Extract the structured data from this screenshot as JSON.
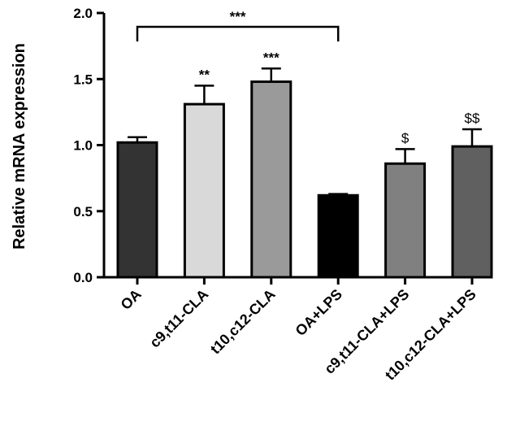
{
  "chart_data": {
    "type": "bar",
    "title": "",
    "xlabel": "",
    "ylabel": "Relative mRNA expression",
    "ylim": [
      0,
      2.0
    ],
    "yticks": [
      "0.0",
      "0.5",
      "1.0",
      "1.5",
      "2.0"
    ],
    "grid": false,
    "categories": [
      "OA",
      "c9,t11-CLA",
      "t10,c12-CLA",
      "OA+LPS",
      "c9,t11-CLA+LPS",
      "t10,c12-CLA+LPS"
    ],
    "values": [
      1.02,
      1.31,
      1.48,
      0.62,
      0.86,
      0.99
    ],
    "errors": [
      0.04,
      0.14,
      0.1,
      0.01,
      0.11,
      0.13
    ],
    "colors": [
      "#333333",
      "#d9d9d9",
      "#9a9a9a",
      "#000000",
      "#808080",
      "#606060"
    ],
    "significance": [
      "",
      "**",
      "***",
      "",
      "$",
      "$$"
    ],
    "comparison": {
      "from": "OA",
      "to": "OA+LPS",
      "label": "***"
    }
  }
}
